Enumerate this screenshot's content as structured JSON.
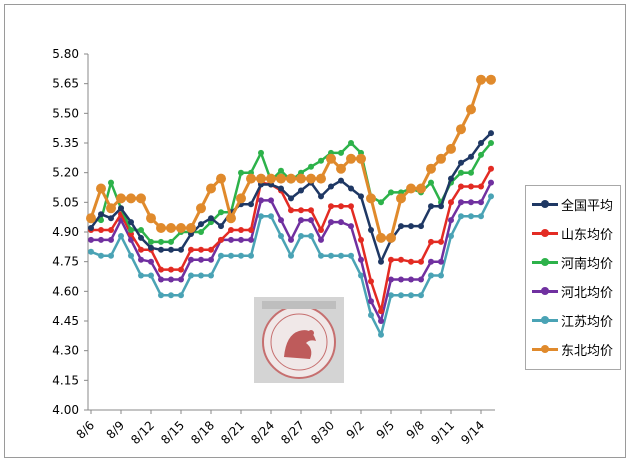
{
  "chart_data": {
    "type": "line",
    "title": "",
    "xlabel": "",
    "ylabel": "",
    "ylim": [
      4.0,
      5.8
    ],
    "yticks": [
      "5.80",
      "5.65",
      "5.50",
      "5.35",
      "5.20",
      "5.05",
      "4.90",
      "4.75",
      "4.60",
      "4.45",
      "4.30",
      "4.15",
      "4.00"
    ],
    "x_tick_labels": [
      "8/6",
      "8/9",
      "8/12",
      "8/15",
      "8/18",
      "8/21",
      "8/24",
      "8/27",
      "8/30",
      "9/2",
      "9/5",
      "9/8",
      "9/11",
      "9/14"
    ],
    "grid": false,
    "legend_position": "right",
    "series": [
      {
        "name": "全国平均",
        "color": "#1f3864",
        "values": [
          4.92,
          4.99,
          4.97,
          5.02,
          4.95,
          4.87,
          4.82,
          4.81,
          4.81,
          4.81,
          4.89,
          4.94,
          4.97,
          4.93,
          5.0,
          5.04,
          5.04,
          5.14,
          5.14,
          5.12,
          5.07,
          5.11,
          5.15,
          5.08,
          5.13,
          5.16,
          5.12,
          5.08,
          4.91,
          4.75,
          4.86,
          4.93,
          4.93,
          4.93,
          5.03,
          5.03,
          5.17,
          5.25,
          5.28,
          5.35,
          5.4
        ]
      },
      {
        "name": "山东均价",
        "color": "#e32b23",
        "values": [
          4.91,
          4.91,
          4.91,
          4.99,
          4.89,
          4.81,
          4.81,
          4.71,
          4.71,
          4.71,
          4.81,
          4.81,
          4.81,
          4.86,
          4.91,
          4.91,
          4.91,
          5.15,
          5.14,
          5.11,
          5.01,
          5.01,
          5.01,
          4.91,
          5.03,
          5.03,
          5.03,
          4.86,
          4.65,
          4.5,
          4.76,
          4.76,
          4.75,
          4.75,
          4.85,
          4.85,
          5.05,
          5.13,
          5.13,
          5.13,
          5.22
        ]
      },
      {
        "name": "河南均价",
        "color": "#2db24a",
        "values": [
          4.96,
          4.96,
          5.15,
          5.02,
          4.91,
          4.91,
          4.85,
          4.85,
          4.85,
          4.9,
          4.9,
          4.9,
          4.95,
          5.0,
          5.0,
          5.2,
          5.2,
          5.3,
          5.16,
          5.21,
          5.16,
          5.2,
          5.23,
          5.26,
          5.3,
          5.3,
          5.35,
          5.3,
          5.08,
          5.05,
          5.1,
          5.1,
          5.12,
          5.1,
          5.15,
          5.05,
          5.15,
          5.2,
          5.2,
          5.29,
          5.35
        ]
      },
      {
        "name": "河北均价",
        "color": "#7030a0",
        "values": [
          4.86,
          4.86,
          4.86,
          4.96,
          4.86,
          4.76,
          4.75,
          4.66,
          4.66,
          4.66,
          4.76,
          4.76,
          4.76,
          4.86,
          4.86,
          4.86,
          4.86,
          5.06,
          5.06,
          4.96,
          4.86,
          4.96,
          4.96,
          4.86,
          4.95,
          4.95,
          4.93,
          4.76,
          4.55,
          4.45,
          4.66,
          4.66,
          4.66,
          4.66,
          4.75,
          4.75,
          4.96,
          5.05,
          5.05,
          5.05,
          5.15
        ]
      },
      {
        "name": "江苏均价",
        "color": "#4aa3b5",
        "values": [
          4.8,
          4.78,
          4.78,
          4.88,
          4.78,
          4.68,
          4.68,
          4.58,
          4.58,
          4.58,
          4.68,
          4.68,
          4.68,
          4.78,
          4.78,
          4.78,
          4.78,
          4.98,
          4.98,
          4.88,
          4.78,
          4.88,
          4.88,
          4.78,
          4.78,
          4.78,
          4.78,
          4.68,
          4.48,
          4.38,
          4.58,
          4.58,
          4.58,
          4.58,
          4.68,
          4.68,
          4.88,
          4.98,
          4.98,
          4.98,
          5.08
        ]
      },
      {
        "name": "东北均价",
        "color": "#e08a2c",
        "values": [
          4.97,
          5.12,
          5.02,
          5.07,
          5.07,
          5.07,
          4.97,
          4.92,
          4.92,
          4.92,
          4.92,
          5.02,
          5.12,
          5.17,
          4.97,
          5.07,
          5.17,
          5.17,
          5.17,
          5.17,
          5.17,
          5.17,
          5.17,
          5.17,
          5.27,
          5.22,
          5.27,
          5.27,
          5.07,
          4.87,
          4.87,
          5.07,
          5.12,
          5.12,
          5.22,
          5.27,
          5.32,
          5.42,
          5.52,
          5.67,
          5.67
        ]
      }
    ]
  }
}
